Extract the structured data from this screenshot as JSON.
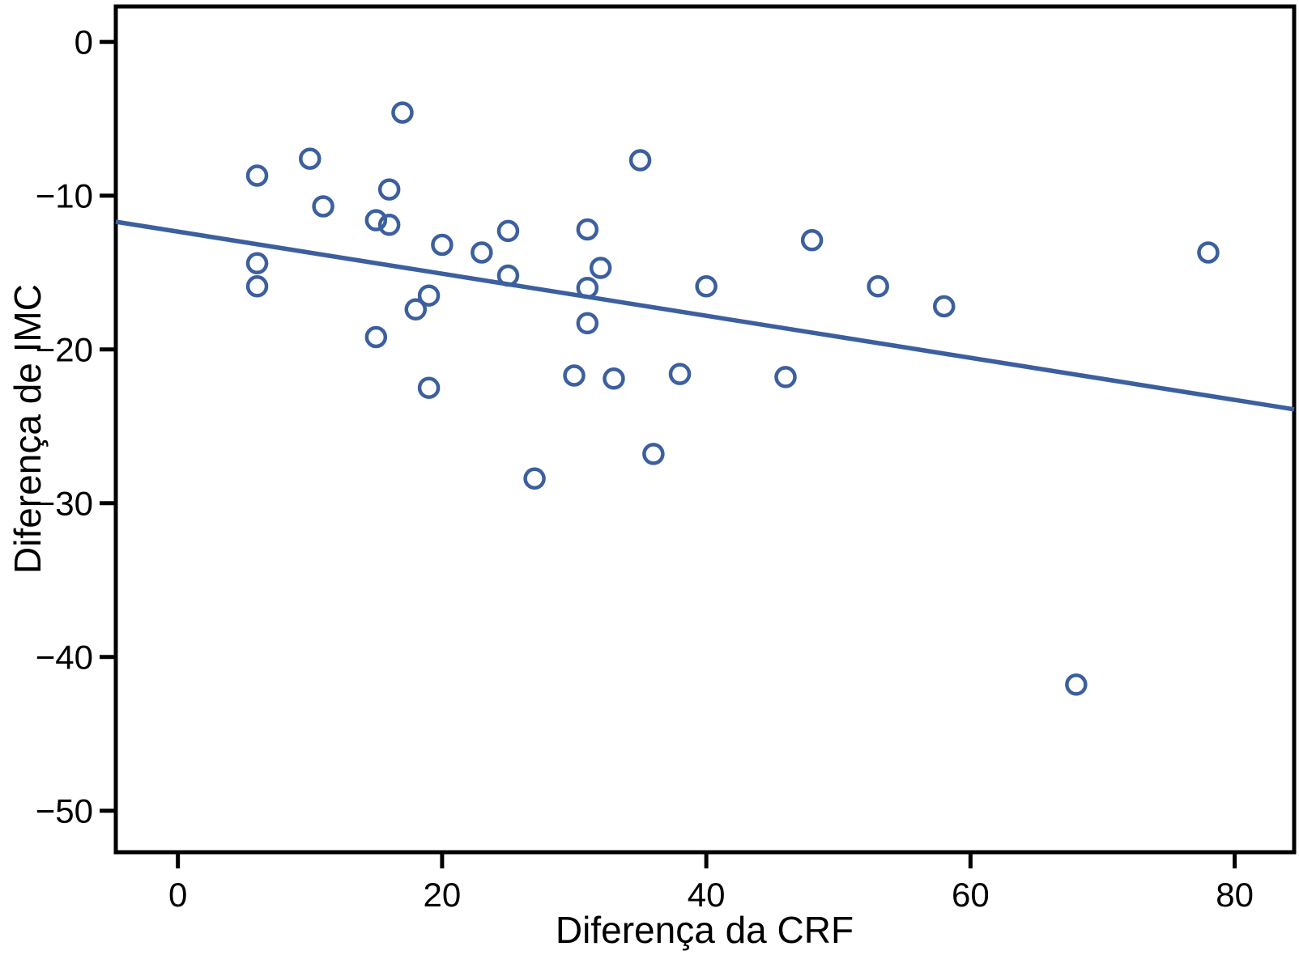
{
  "chart_data": {
    "type": "scatter",
    "title": "",
    "xlabel": "Diferença da CRF",
    "ylabel": "Diferença de IMC",
    "xlim": [
      -4.7,
      84.5
    ],
    "ylim": [
      -52.7,
      2.3
    ],
    "x_ticks": [
      0,
      20,
      40,
      60,
      80
    ],
    "x_tick_labels": [
      "0",
      "20",
      "40",
      "60",
      "80"
    ],
    "y_ticks": [
      0,
      -10,
      -20,
      -30,
      -40,
      -50
    ],
    "y_tick_labels": [
      "0",
      "−10",
      "−20",
      "−30",
      "−40",
      "−50"
    ],
    "grid": false,
    "legend": "none",
    "marker": {
      "shape": "open-circle",
      "color": "#3c5f9f"
    },
    "trendline": {
      "x1": -4.7,
      "y1": -11.7,
      "x2": 84.5,
      "y2": -23.9,
      "color": "#3c5f9f"
    },
    "frame_color": "#000000",
    "points": [
      [
        17,
        -4.6
      ],
      [
        10,
        -7.6
      ],
      [
        35,
        -7.7
      ],
      [
        6,
        -8.7
      ],
      [
        16,
        -9.6
      ],
      [
        11,
        -10.7
      ],
      [
        15,
        -11.6
      ],
      [
        16,
        -11.9
      ],
      [
        31,
        -12.2
      ],
      [
        25,
        -12.3
      ],
      [
        48,
        -12.9
      ],
      [
        20,
        -13.2
      ],
      [
        23,
        -13.7
      ],
      [
        78,
        -13.7
      ],
      [
        6,
        -14.4
      ],
      [
        32,
        -14.7
      ],
      [
        25,
        -15.2
      ],
      [
        6,
        -15.9
      ],
      [
        40,
        -15.9
      ],
      [
        53,
        -15.9
      ],
      [
        31,
        -16.0
      ],
      [
        19,
        -16.5
      ],
      [
        58,
        -17.2
      ],
      [
        18,
        -17.4
      ],
      [
        31,
        -18.3
      ],
      [
        15,
        -19.2
      ],
      [
        38,
        -21.6
      ],
      [
        30,
        -21.7
      ],
      [
        46,
        -21.8
      ],
      [
        33,
        -21.9
      ],
      [
        19,
        -22.5
      ],
      [
        36,
        -26.8
      ],
      [
        27,
        -28.4
      ],
      [
        68,
        -41.8
      ]
    ]
  }
}
